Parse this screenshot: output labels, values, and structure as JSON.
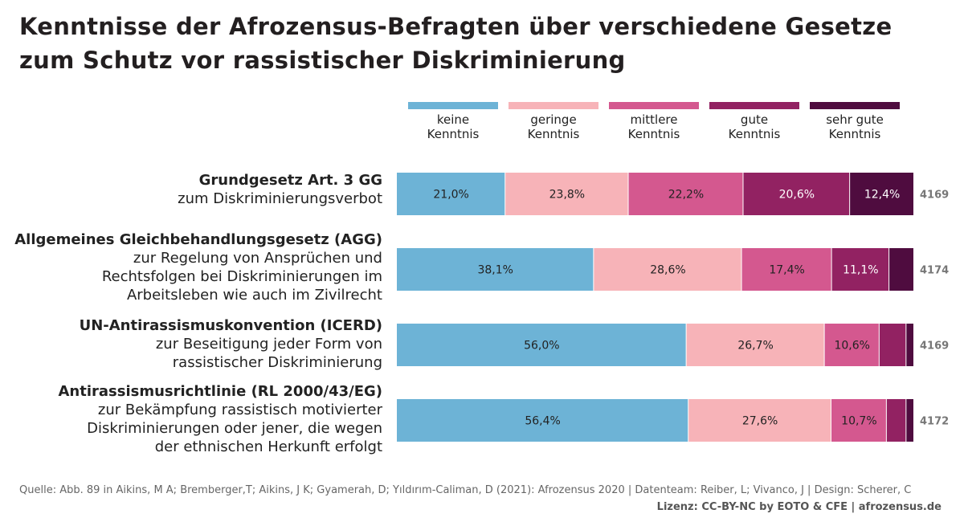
{
  "title": "Kenntnisse der Afrozensus-Befragten über verschiedene Gesetze zum Schutz vor rassistischer Diskriminierung",
  "colors": {
    "keine": "#6db3d6",
    "geringe": "#f7b3b8",
    "mittlere": "#d4588f",
    "gute": "#922262",
    "sehr_gute": "#4f0c3f"
  },
  "legend": [
    {
      "label": "keine\nKenntnis",
      "color_key": "keine"
    },
    {
      "label": "geringe\nKenntnis",
      "color_key": "geringe"
    },
    {
      "label": "mittlere\nKenntnis",
      "color_key": "mittlere"
    },
    {
      "label": "gute\nKenntnis",
      "color_key": "gute"
    },
    {
      "label": "sehr gute\nKenntnis",
      "color_key": "sehr_gute"
    }
  ],
  "rows": [
    {
      "title": "Grundgesetz Art. 3 GG",
      "subtitle": "zum Diskriminierungsverbot"
    },
    {
      "title": "Allgemeines Gleichbehandlungsgesetz (AGG)",
      "subtitle": "zur Regelung von Ansprüchen und\nRechtsfolgen bei Diskriminierungen im\nArbeitsleben wie auch im Zivilrecht"
    },
    {
      "title": "UN-Antirassismuskonvention (ICERD)",
      "subtitle": "zur Beseitigung jeder Form von\nrassistischer Diskriminierung"
    },
    {
      "title": "Antirassismusrichtlinie (RL 2000/43/EG)",
      "subtitle": "zur Bekämpfung rassistisch motivierter\nDiskriminierungen oder jener, die wegen\nder ethnischen Herkunft erfolgt"
    }
  ],
  "chart_data": {
    "type": "bar",
    "orientation": "horizontal",
    "stacked": true,
    "normalized": true,
    "categories": [
      "Grundgesetz Art. 3 GG",
      "Allgemeines Gleichbehandlungsgesetz (AGG)",
      "UN-Antirassismuskonvention (ICERD)",
      "Antirassismusrichtlinie (RL 2000/43/EG)"
    ],
    "series": [
      {
        "name": "keine Kenntnis",
        "values": [
          21.0,
          38.1,
          56.0,
          56.4
        ],
        "labels": [
          "21,0%",
          "38,1%",
          "56,0%",
          "56,4%"
        ]
      },
      {
        "name": "geringe Kenntnis",
        "values": [
          23.8,
          28.6,
          26.7,
          27.6
        ],
        "labels": [
          "23,8%",
          "28,6%",
          "26,7%",
          "27,6%"
        ]
      },
      {
        "name": "mittlere Kenntnis",
        "values": [
          22.2,
          17.4,
          10.6,
          10.7
        ],
        "labels": [
          "22,2%",
          "17,4%",
          "10,6%",
          "10,7%"
        ]
      },
      {
        "name": "gute Kenntnis",
        "values": [
          20.6,
          11.1,
          5.2,
          3.8
        ],
        "labels": [
          "20,6%",
          "11,1%",
          "",
          ""
        ]
      },
      {
        "name": "sehr gute Kenntnis",
        "values": [
          12.4,
          4.8,
          1.5,
          1.5
        ],
        "labels": [
          "12,4%",
          "",
          "",
          ""
        ]
      }
    ],
    "n": [
      "4169",
      "4174",
      "4169",
      "4172"
    ],
    "xlim": [
      0,
      100
    ],
    "grid": false,
    "legend_position": "top"
  },
  "source": "Quelle: Abb. 89 in Aikins, M A; Bremberger,T; Aikins, J K; Gyamerah, D; Yıldırım-Caliman, D (2021): Afrozensus 2020 | Datenteam: Reiber, L; Vivanco, J | Design: Scherer, C",
  "license": "Lizenz: CC-BY-NC by EOTO & CFE | afrozensus.de"
}
